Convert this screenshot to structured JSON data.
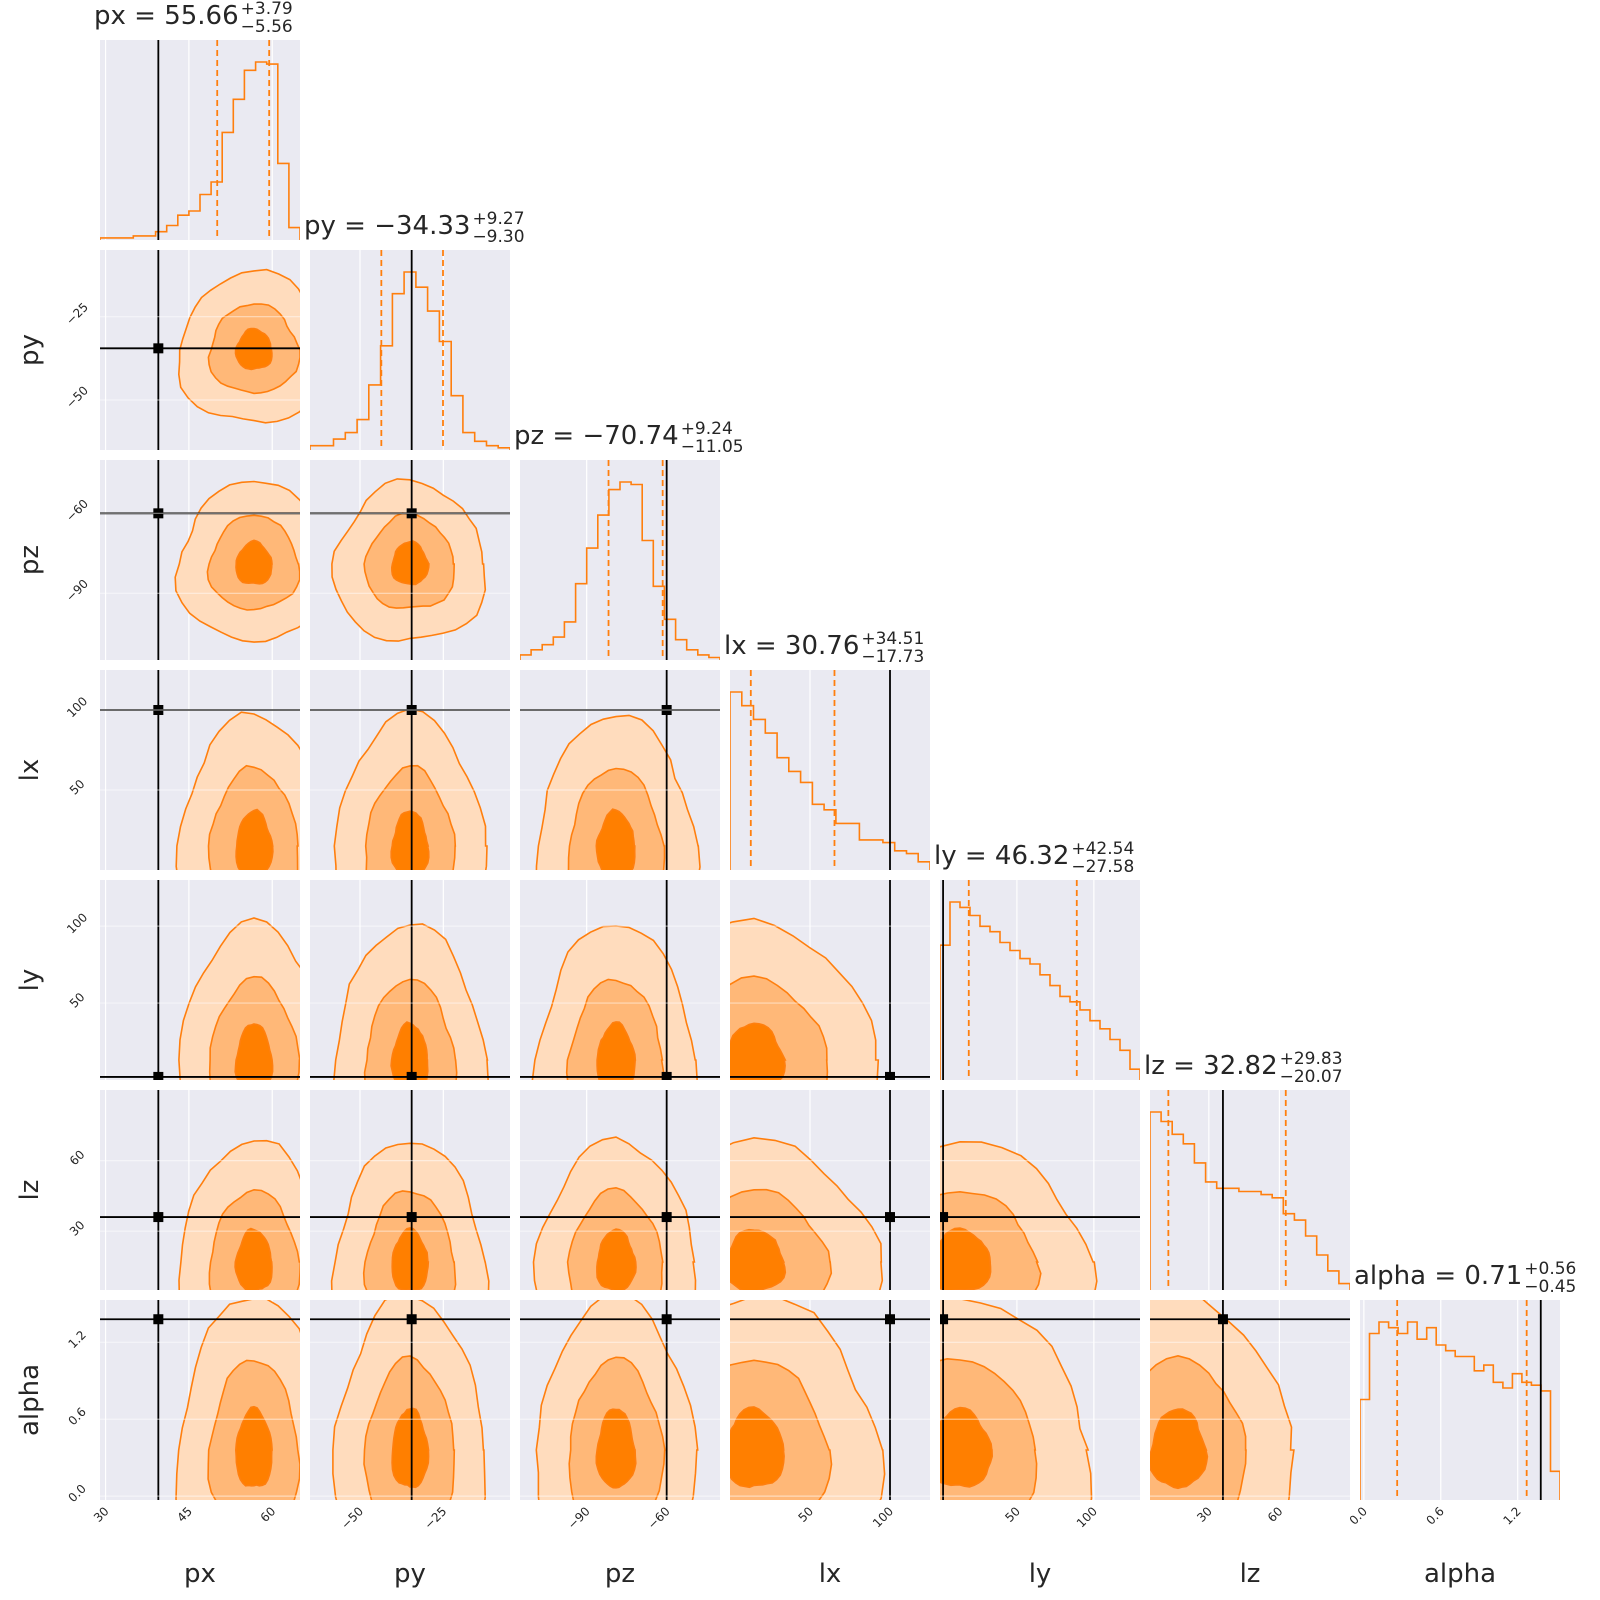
{
  "chart_data": {
    "type": "corner",
    "parameters": [
      "px",
      "py",
      "pz",
      "lx",
      "ly",
      "lz",
      "alpha"
    ],
    "titles": [
      {
        "param": "px",
        "median": "55.66",
        "plus": "+3.79",
        "minus": "−5.56"
      },
      {
        "param": "py",
        "median": "−34.33",
        "plus": "+9.27",
        "minus": "−9.30"
      },
      {
        "param": "pz",
        "median": "−70.74",
        "plus": "+9.24",
        "minus": "−11.05"
      },
      {
        "param": "lx",
        "median": "30.76",
        "plus": "+34.51",
        "minus": "−17.73"
      },
      {
        "param": "ly",
        "median": "46.32",
        "plus": "+42.54",
        "minus": "−27.58"
      },
      {
        "param": "lz",
        "median": "32.82",
        "plus": "+29.83",
        "minus": "−20.07"
      },
      {
        "param": "alpha",
        "median": "0.71",
        "plus": "+0.56",
        "minus": "−0.45"
      }
    ],
    "ranges": {
      "px": [
        29,
        65
      ],
      "py": [
        -65,
        -5
      ],
      "pz": [
        -115,
        -40
      ],
      "lx": [
        0,
        125
      ],
      "ly": [
        0,
        130
      ],
      "lz": [
        5,
        90
      ],
      "alpha": [
        -0.03,
        1.53
      ]
    },
    "ticks": {
      "px": [
        "30",
        "45",
        "60"
      ],
      "py": [
        "−50",
        "−25"
      ],
      "pz": [
        "−90",
        "−60"
      ],
      "lx": [
        "50",
        "100"
      ],
      "ly": [
        "50",
        "100"
      ],
      "lz": [
        "30",
        "60"
      ],
      "alpha": [
        "0.0",
        "0.6",
        "1.2"
      ]
    },
    "truths": {
      "px": 39.5,
      "py": -34.5,
      "pz": -60,
      "lx": 100,
      "ly": 2,
      "lz": 36,
      "alpha": 1.38
    },
    "quantiles": {
      "px": [
        50.1,
        59.45
      ],
      "py": [
        -43.6,
        -25.1
      ],
      "pz": [
        -81.8,
        -61.5
      ],
      "lx": [
        13,
        65.3
      ],
      "ly": [
        18.7,
        88.9
      ],
      "lz": [
        12.8,
        62.7
      ],
      "alpha": [
        0.26,
        1.27
      ]
    },
    "histograms": {
      "px": [
        1,
        1,
        1,
        2,
        2,
        4,
        7,
        12,
        14,
        22,
        28,
        52,
        68,
        82,
        86,
        85,
        37,
        6
      ],
      "py": [
        2,
        2,
        5,
        8,
        14,
        30,
        48,
        72,
        82,
        75,
        64,
        50,
        25,
        8,
        4,
        2,
        1
      ],
      "pz": [
        2,
        4,
        6,
        9,
        15,
        30,
        44,
        57,
        67,
        70,
        69,
        47,
        29,
        16,
        8,
        4,
        2,
        1
      ],
      "lx": [
        65,
        60,
        55,
        50,
        41,
        36,
        32,
        24,
        22,
        17,
        17,
        11,
        11,
        10,
        7,
        6,
        3
      ],
      "ly": [
        50,
        66,
        64,
        61,
        57,
        55,
        51,
        48,
        45,
        43,
        39,
        35,
        31,
        29,
        26,
        22,
        19,
        15,
        11,
        4
      ],
      "lz": [
        56,
        53,
        49,
        46,
        40,
        34,
        32,
        32,
        31,
        31,
        30,
        29,
        24,
        22,
        17,
        11,
        6,
        2
      ],
      "alpha": [
        35,
        58,
        62,
        60,
        58,
        62,
        56,
        60,
        54,
        52,
        50,
        50,
        45,
        47,
        41,
        39,
        44,
        41,
        40,
        38,
        10
      ]
    },
    "colors": {
      "line": "#ff7f0e",
      "fill_outer": "#ffdcbd",
      "fill_middle": "#ffb878",
      "fill_inner": "#ff7f00",
      "panel_bg": "#eaeaf2",
      "grid": "#ffffff",
      "truth": "#000000"
    },
    "grid": true
  }
}
